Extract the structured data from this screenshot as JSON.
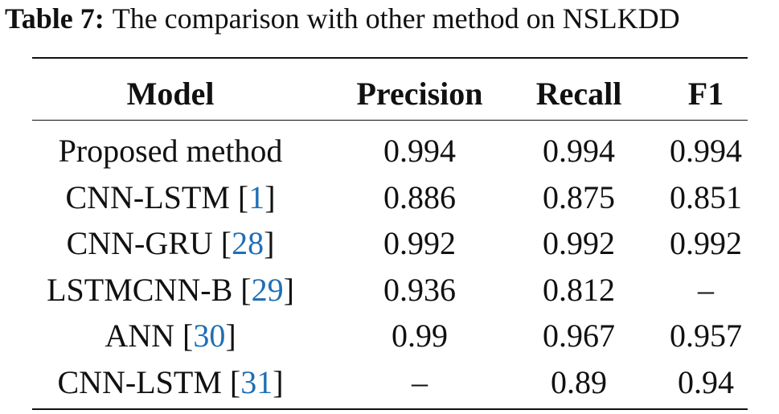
{
  "caption": {
    "label": "Table 7:",
    "text": "The comparison with other method on NSLKDD"
  },
  "table": {
    "header": [
      "Model",
      "Precision",
      "Recall",
      "F1"
    ],
    "rows": [
      [
        [
          "Proposed method"
        ],
        "0.994",
        "0.994",
        "0.994"
      ],
      [
        [
          "CNN-LSTM [",
          "1",
          "]"
        ],
        "0.886",
        "0.875",
        "0.851"
      ],
      [
        [
          "CNN-GRU [",
          "28",
          "]"
        ],
        "0.992",
        "0.992",
        "0.992"
      ],
      [
        [
          "LSTMCNN-B [",
          "29",
          "]"
        ],
        "0.936",
        "0.812",
        "–"
      ],
      [
        [
          "ANN [",
          "30",
          "]"
        ],
        "0.99",
        "0.967",
        "0.957"
      ],
      [
        [
          "CNN-LSTM [",
          "31",
          "]"
        ],
        "–",
        "0.89",
        "0.94"
      ]
    ]
  }
}
